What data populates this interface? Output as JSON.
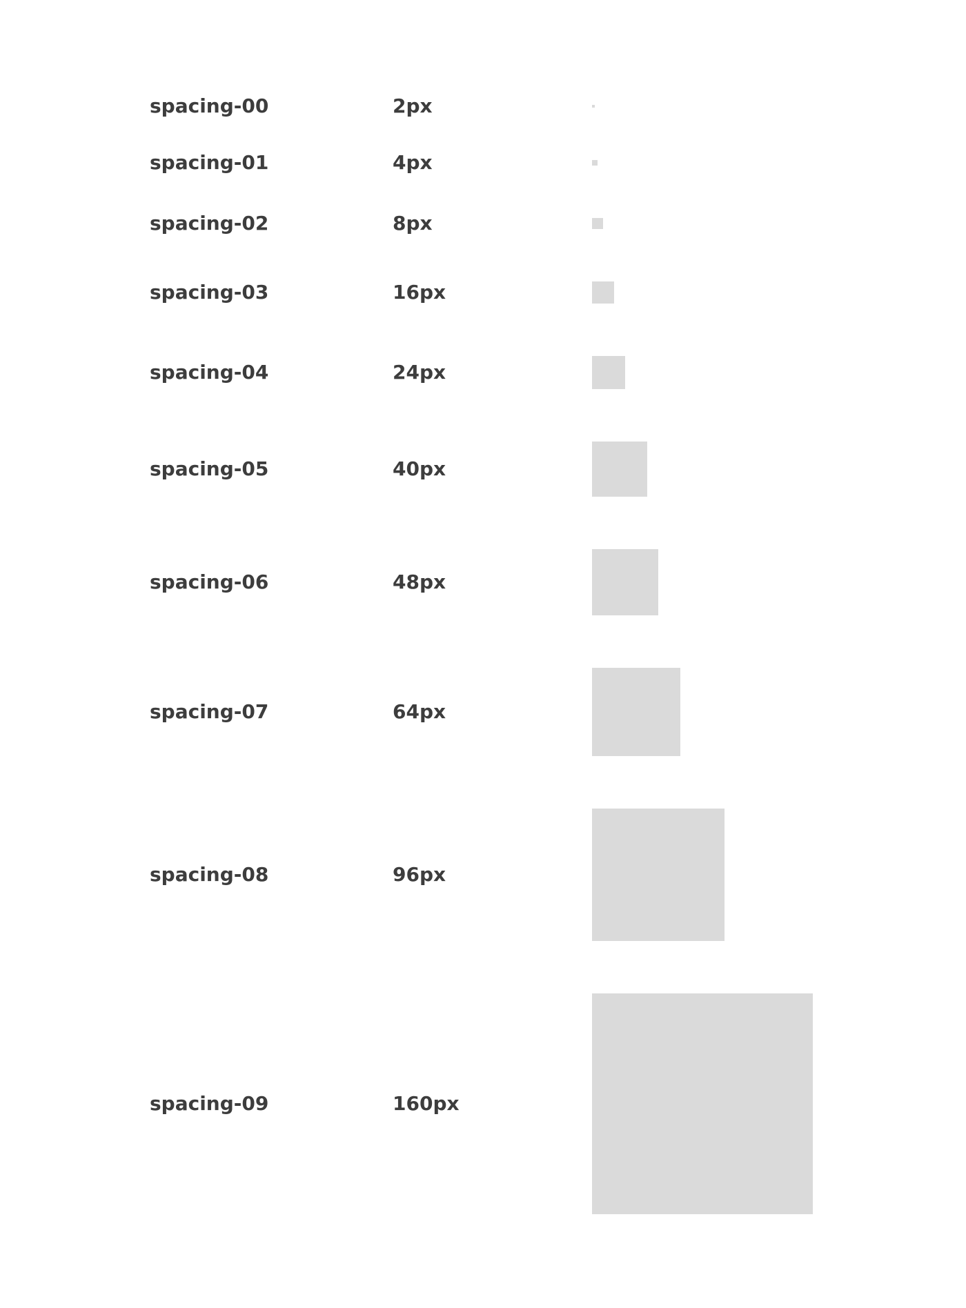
{
  "rows": [
    {
      "name": "spacing-00",
      "value": "2px"
    },
    {
      "name": "spacing-01",
      "value": "4px"
    },
    {
      "name": "spacing-02",
      "value": "8px"
    },
    {
      "name": "spacing-03",
      "value": "16px"
    },
    {
      "name": "spacing-04",
      "value": "24px"
    },
    {
      "name": "spacing-05",
      "value": "40px"
    },
    {
      "name": "spacing-06",
      "value": "48px"
    },
    {
      "name": "spacing-07",
      "value": "64px"
    },
    {
      "name": "spacing-08",
      "value": "96px"
    },
    {
      "name": "spacing-09",
      "value": "160px"
    }
  ]
}
